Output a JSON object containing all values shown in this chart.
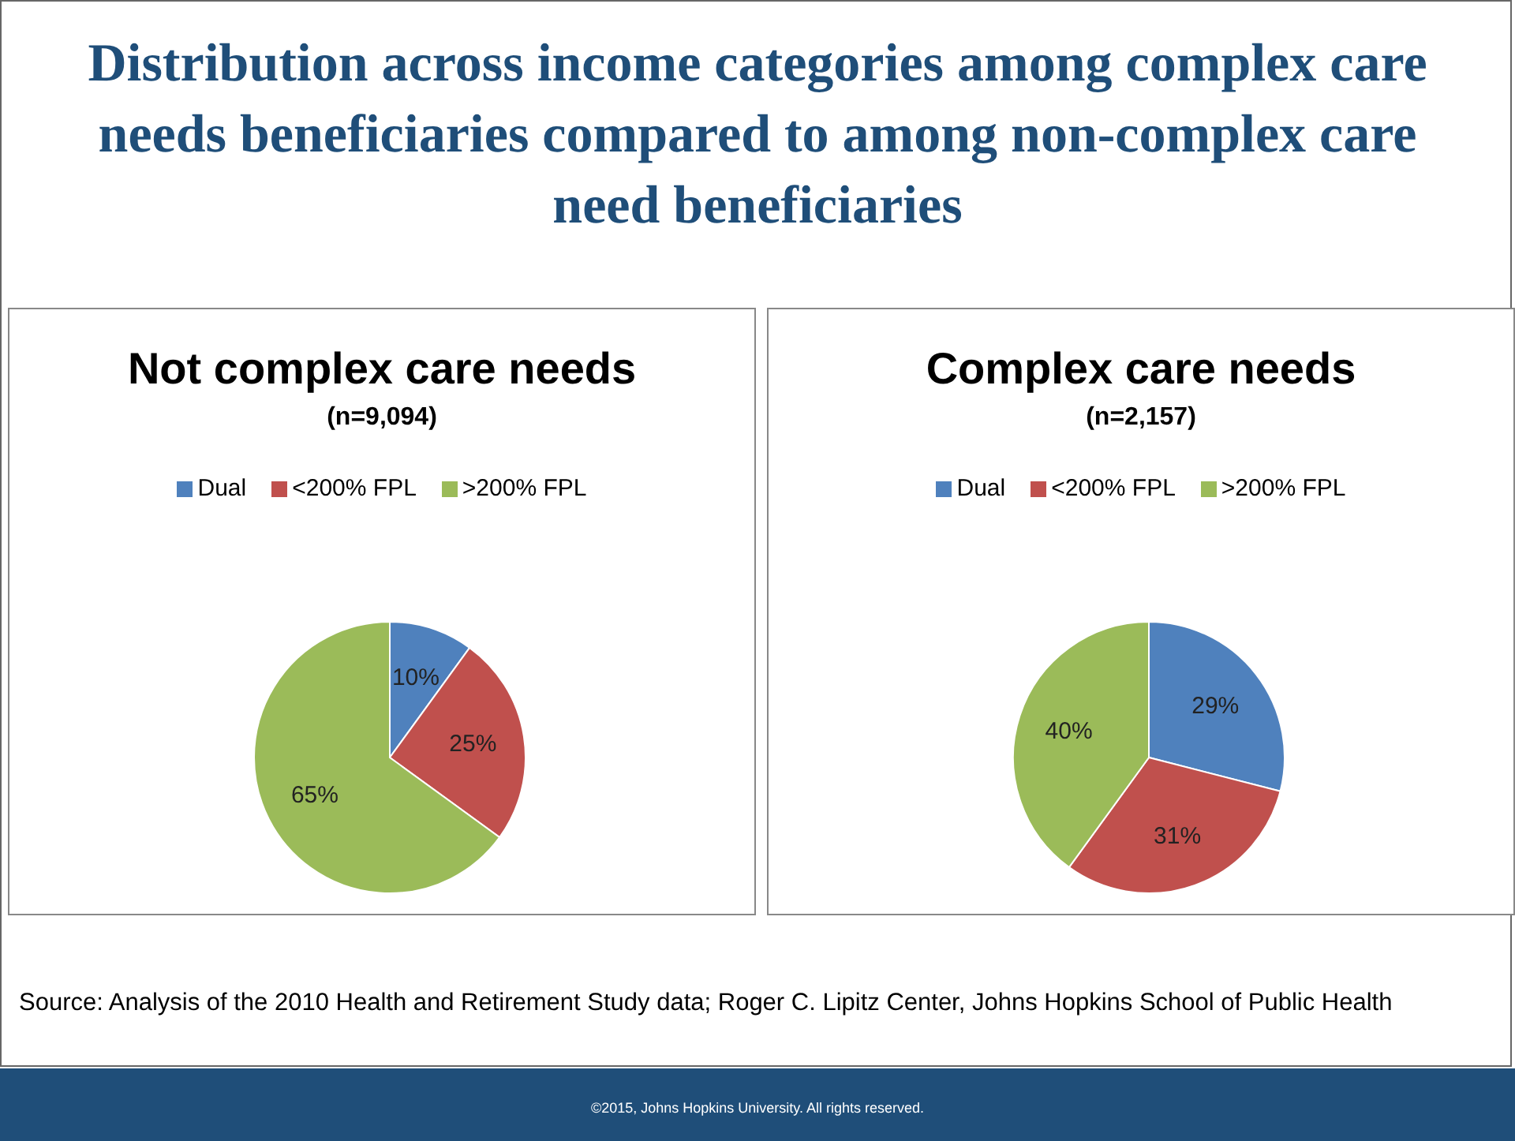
{
  "chart_data": [
    {
      "type": "other",
      "title": "Distribution across income categories among complex care needs beneficiaries compared to among non-complex care need beneficiaries",
      "annotations": [
        "Source: Analysis of the 2010 Health and Retirement Study data; Roger C. Lipitz Center,  Johns Hopkins School of Public Health",
        "©2015, Johns Hopkins University. All rights reserved."
      ]
    },
    {
      "type": "pie",
      "title": "Not complex care needs",
      "subtitle": "(n=9,094)",
      "categories": [
        "Dual",
        "<200% FPL",
        ">200% FPL"
      ],
      "values": [
        10,
        25,
        65
      ],
      "value_labels": [
        "10%",
        "25%",
        "65%"
      ],
      "colors": [
        "#4f81bd",
        "#c0504d",
        "#9bbb59"
      ],
      "legend": "top"
    },
    {
      "type": "pie",
      "title": "Complex care needs",
      "subtitle": "(n=2,157)",
      "categories": [
        "Dual",
        "<200% FPL",
        ">200% FPL"
      ],
      "values": [
        29,
        31,
        40
      ],
      "value_labels": [
        "29%",
        "31%",
        "40%"
      ],
      "colors": [
        "#4f81bd",
        "#c0504d",
        "#9bbb59"
      ],
      "legend": "top"
    }
  ]
}
